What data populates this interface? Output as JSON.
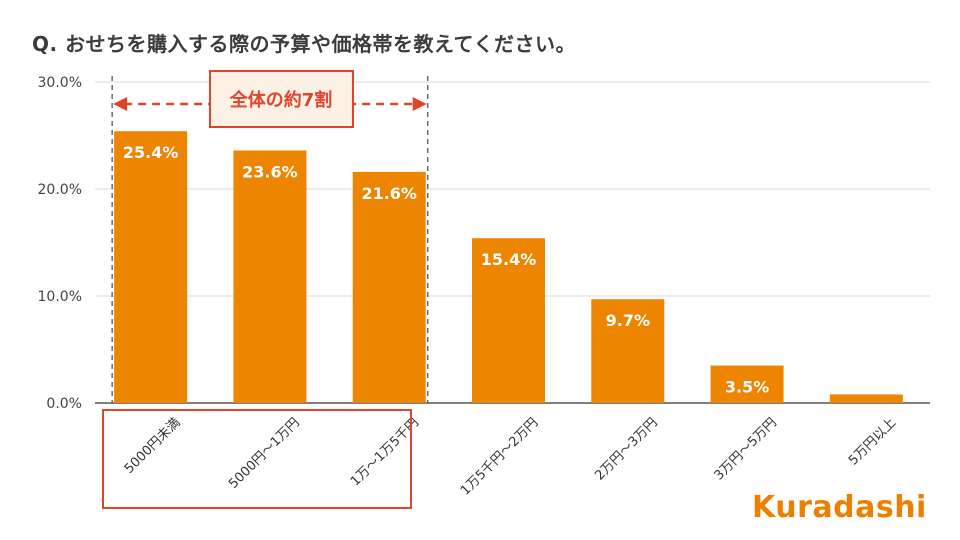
{
  "title": "Q. おせちを購入する際の予算や価格帯を教えてください。",
  "logo_text": "Kuradashi",
  "colors": {
    "bar": "#ee8500",
    "callout": "#e0452c",
    "callout_bg": "#fdf0e4",
    "text": "#3c3c3c"
  },
  "chart_data": {
    "type": "bar",
    "title": "Q. おせちを購入する際の予算や価格帯を教えてください。",
    "categories": [
      "5000円未満",
      "5000円～1万円",
      "1万～1万5千円",
      "1万5千円～2万円",
      "2万円～3万円",
      "3万円～5万円",
      "5万円以上"
    ],
    "values": [
      25.4,
      23.6,
      21.6,
      15.4,
      9.7,
      3.5,
      0.8
    ],
    "data_labels": [
      "25.4%",
      "23.6%",
      "21.6%",
      "15.4%",
      "9.7%",
      "3.5%",
      ""
    ],
    "yticks": [
      0,
      10,
      20,
      30
    ],
    "ytick_labels": [
      "0.0%",
      "10.0%",
      "20.0%",
      "30.0%"
    ],
    "ylim": [
      0,
      30
    ],
    "xlabel": "",
    "ylabel": "",
    "grid": true,
    "annotation": {
      "text": "全体の約7割",
      "span_categories": [
        0,
        2
      ]
    }
  }
}
